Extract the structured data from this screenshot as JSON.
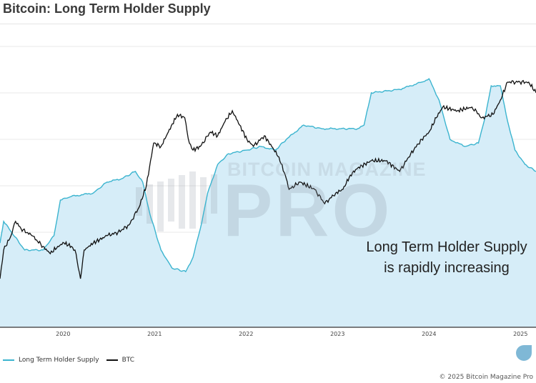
{
  "header": {
    "title": "Bitcoin: Long Term Holder Supply"
  },
  "annotation": {
    "line1": "Long Term Holder Supply",
    "line2": "is rapidly increasing"
  },
  "watermark": {
    "top": "BITCOIN MAGAZINE",
    "main": "PRO"
  },
  "legend": {
    "lth_label": "Long Term Holder Supply",
    "btc_label": "BTC"
  },
  "footer": {
    "copyright": "© 2025 Bitcoin Magazine Pro"
  },
  "colors": {
    "lth": "#3bb4cf",
    "lth_fill": "#d6edf8",
    "btc": "#111111",
    "grid": "#e8e8e8",
    "axis": "#555555"
  },
  "chart_data": {
    "type": "line",
    "title": "Bitcoin: Long Term Holder Supply",
    "xlabel": "",
    "ylabel": "",
    "xlim": [
      2019.31,
      2025.17
    ],
    "ylim": [
      0,
      100
    ],
    "y_units": "relative index (axis labels not visible)",
    "x_ticks": [
      "2020",
      "2021",
      "2022",
      "2023",
      "2024",
      "2025"
    ],
    "x_tick_values": [
      2020,
      2021,
      2022,
      2023,
      2024,
      2025
    ],
    "grid": true,
    "legend_position": "bottom-left",
    "series": [
      {
        "name": "Long Term Holder Supply",
        "style": "area",
        "x": [
          2019.31,
          2019.35,
          2019.58,
          2019.78,
          2019.9,
          2019.97,
          2020.09,
          2020.33,
          2020.48,
          2020.64,
          2020.79,
          2020.87,
          2020.95,
          2021.07,
          2021.19,
          2021.34,
          2021.42,
          2021.5,
          2021.58,
          2021.69,
          2021.81,
          2022.01,
          2022.16,
          2022.32,
          2022.44,
          2022.63,
          2022.83,
          2023.02,
          2023.22,
          2023.29,
          2023.37,
          2023.68,
          2023.92,
          2024.0,
          2024.11,
          2024.23,
          2024.39,
          2024.54,
          2024.62,
          2024.68,
          2024.78,
          2024.86,
          2024.94,
          2025.05,
          2025.17
        ],
        "values": [
          30,
          37.7,
          27.5,
          27.5,
          32.6,
          45.3,
          46.6,
          47.8,
          51.7,
          52.9,
          55.5,
          51.7,
          40.2,
          27.5,
          21.1,
          19.8,
          24.9,
          35.1,
          47.8,
          58.0,
          61.8,
          63.1,
          64.4,
          63.1,
          66.9,
          72.0,
          70.7,
          70.7,
          70.7,
          72.0,
          83.5,
          84.7,
          87.3,
          88.5,
          80.9,
          66.9,
          64.4,
          65.6,
          75.8,
          86.0,
          86.0,
          73.3,
          63.1,
          58.0,
          55.5
        ]
      },
      {
        "name": "BTC",
        "style": "line",
        "x": [
          2019.31,
          2019.35,
          2019.43,
          2019.48,
          2019.54,
          2019.66,
          2019.78,
          2019.86,
          2019.94,
          2020.01,
          2020.09,
          2020.13,
          2020.19,
          2020.23,
          2020.33,
          2020.48,
          2020.6,
          2020.72,
          2020.83,
          2020.91,
          2020.99,
          2021.07,
          2021.15,
          2021.25,
          2021.33,
          2021.38,
          2021.42,
          2021.5,
          2021.61,
          2021.69,
          2021.77,
          2021.85,
          2021.93,
          2022.01,
          2022.08,
          2022.2,
          2022.28,
          2022.36,
          2022.44,
          2022.47,
          2022.59,
          2022.75,
          2022.86,
          2022.98,
          2023.06,
          2023.14,
          2023.22,
          2023.37,
          2023.53,
          2023.68,
          2023.8,
          2023.92,
          2024.0,
          2024.08,
          2024.15,
          2024.31,
          2024.47,
          2024.58,
          2024.7,
          2024.78,
          2024.86,
          2024.97,
          2025.09,
          2025.17
        ],
        "values": [
          17.3,
          27.5,
          32.6,
          37.7,
          35.1,
          32.6,
          28.8,
          26.2,
          28.8,
          30.0,
          28.8,
          27.5,
          17.3,
          27.5,
          30.0,
          32.6,
          33.8,
          36.4,
          42.7,
          50.4,
          65.6,
          64.4,
          69.5,
          75.8,
          74.6,
          65.6,
          63.1,
          64.4,
          69.5,
          68.2,
          73.3,
          77.1,
          72.0,
          66.9,
          64.4,
          68.2,
          64.4,
          60.6,
          52.9,
          49.1,
          51.7,
          49.1,
          44.0,
          47.8,
          49.1,
          54.2,
          56.7,
          59.3,
          59.3,
          55.5,
          61.8,
          66.9,
          69.5,
          74.6,
          78.4,
          77.1,
          78.4,
          74.6,
          75.8,
          80.9,
          87.3,
          87.3,
          87.3,
          83.5
        ]
      }
    ]
  }
}
